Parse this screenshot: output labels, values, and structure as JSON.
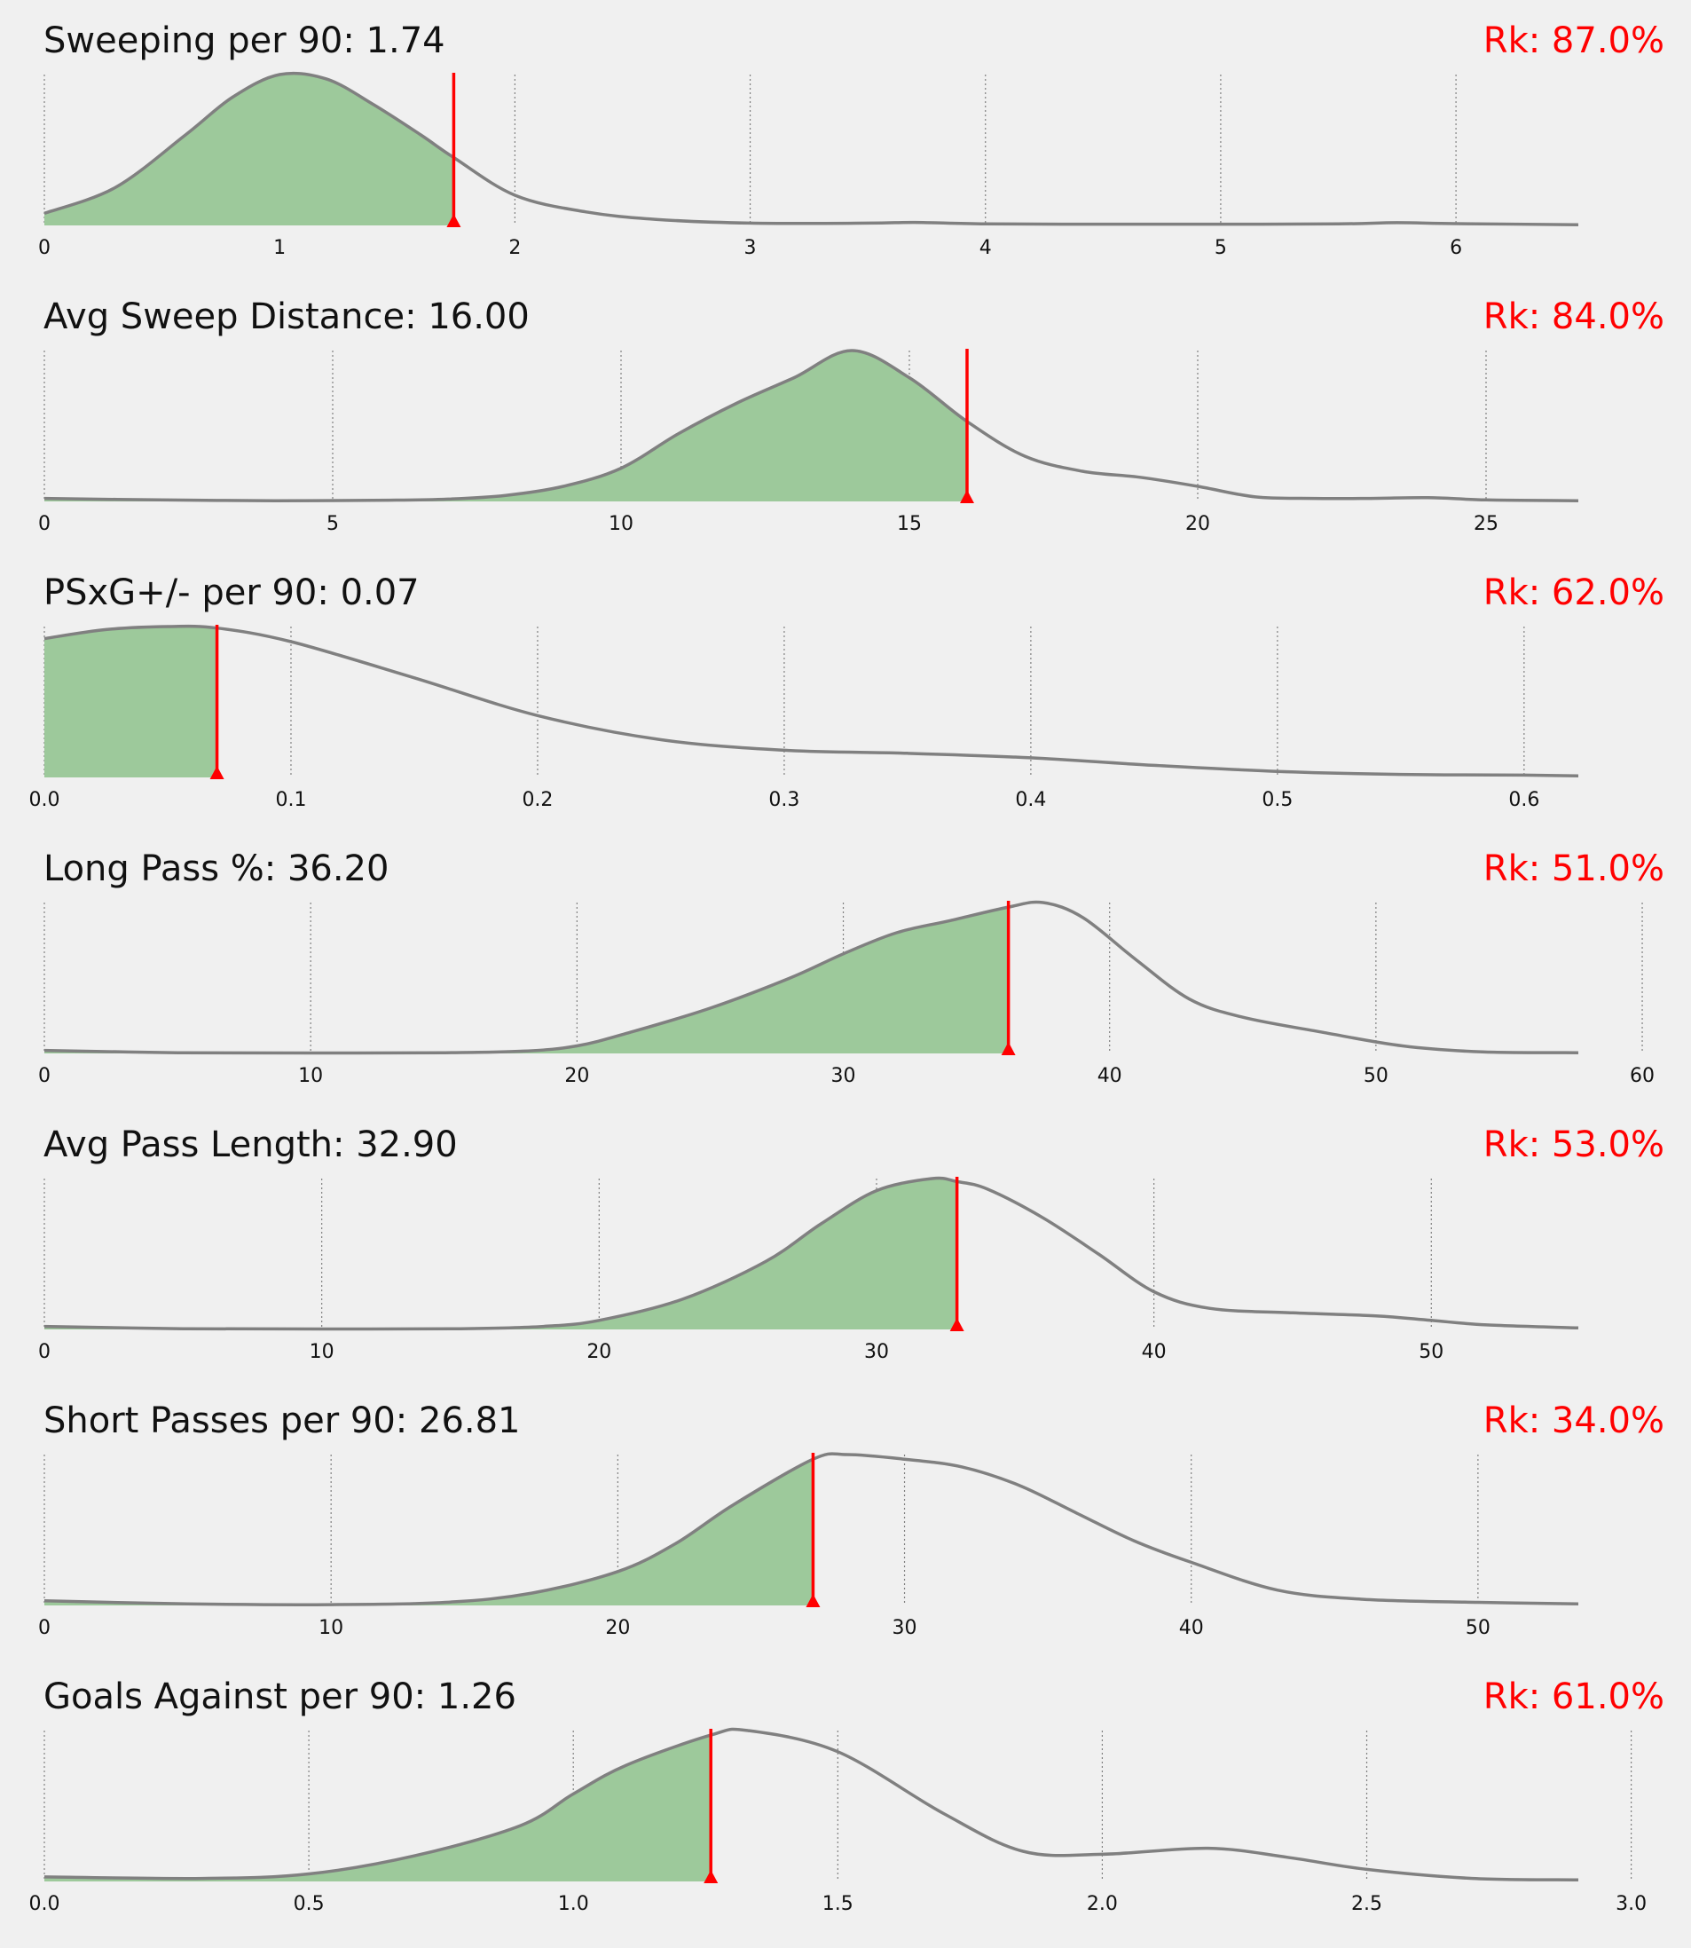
{
  "colors": {
    "background": "#f0f0f0",
    "density_line": "#808080",
    "fill": "#9dc99b",
    "marker": "#ff0000",
    "rank_text": "#ff0000",
    "grid": "#808080"
  },
  "chart_data": [
    {
      "type": "area",
      "title": "Sweeping per 90: 1.74",
      "rank_label": "Rk: 87.0%",
      "player_value": 1.74,
      "ticks": [
        0,
        1,
        2,
        3,
        4,
        5,
        6
      ],
      "tick_labels": [
        "0",
        "1",
        "2",
        "3",
        "4",
        "5",
        "6"
      ],
      "xlim": [
        0,
        6.52
      ],
      "x": [
        0,
        0.3,
        0.6,
        0.8,
        1.0,
        1.2,
        1.4,
        1.6,
        1.74,
        2.0,
        2.3,
        2.6,
        3.0,
        3.5,
        3.7,
        4.0,
        4.5,
        5.0,
        5.5,
        5.75,
        6.0,
        6.52
      ],
      "y": [
        0.08,
        0.25,
        0.6,
        0.85,
        1.0,
        0.97,
        0.8,
        0.6,
        0.45,
        0.2,
        0.09,
        0.04,
        0.015,
        0.015,
        0.02,
        0.01,
        0.008,
        0.008,
        0.01,
        0.018,
        0.012,
        0.005
      ],
      "grid": true
    },
    {
      "type": "area",
      "title": "Avg Sweep Distance: 16.00",
      "rank_label": "Rk: 84.0%",
      "player_value": 16.0,
      "ticks": [
        0,
        5,
        10,
        15,
        20,
        25
      ],
      "tick_labels": [
        "0",
        "5",
        "10",
        "15",
        "20",
        "25"
      ],
      "xlim": [
        0,
        26.6
      ],
      "x": [
        0,
        2,
        4,
        6,
        7,
        8,
        9,
        10,
        11,
        12,
        13,
        14,
        15,
        16,
        17,
        18,
        19,
        20,
        21,
        22,
        23,
        24,
        25,
        26.6
      ],
      "y": [
        0.02,
        0.01,
        0.005,
        0.008,
        0.015,
        0.04,
        0.1,
        0.22,
        0.45,
        0.65,
        0.82,
        1.0,
        0.82,
        0.53,
        0.3,
        0.2,
        0.16,
        0.1,
        0.03,
        0.02,
        0.02,
        0.025,
        0.01,
        0.005
      ],
      "grid": true
    },
    {
      "type": "area",
      "title": "PSxG+/- per 90: 0.07",
      "rank_label": "Rk: 62.0%",
      "player_value": 0.07,
      "ticks": [
        0.0,
        0.1,
        0.2,
        0.3,
        0.4,
        0.5,
        0.6
      ],
      "tick_labels": [
        "0.0",
        "0.1",
        "0.2",
        "0.3",
        "0.4",
        "0.5",
        "0.6"
      ],
      "xlim": [
        0,
        0.622
      ],
      "x": [
        0,
        0.025,
        0.05,
        0.07,
        0.1,
        0.15,
        0.2,
        0.25,
        0.3,
        0.35,
        0.4,
        0.45,
        0.5,
        0.55,
        0.6,
        0.622
      ],
      "y": [
        0.92,
        0.98,
        1.0,
        0.99,
        0.9,
        0.66,
        0.41,
        0.25,
        0.18,
        0.16,
        0.13,
        0.08,
        0.04,
        0.02,
        0.015,
        0.01
      ],
      "grid": true
    },
    {
      "type": "area",
      "title": "Long Pass %: 36.20",
      "rank_label": "Rk: 51.0%",
      "player_value": 36.2,
      "ticks": [
        0,
        10,
        20,
        30,
        40,
        50,
        60
      ],
      "tick_labels": [
        "0",
        "10",
        "20",
        "30",
        "40",
        "50",
        "60"
      ],
      "xlim": [
        0,
        57.6
      ],
      "x": [
        0,
        5,
        10,
        15,
        18,
        20,
        22,
        25,
        28,
        30,
        32,
        34,
        36.2,
        37.5,
        39,
        41,
        43,
        45,
        48,
        51,
        54,
        57.6
      ],
      "y": [
        0.02,
        0.005,
        0.003,
        0.005,
        0.015,
        0.05,
        0.14,
        0.3,
        0.5,
        0.66,
        0.8,
        0.88,
        0.97,
        1.0,
        0.9,
        0.62,
        0.36,
        0.24,
        0.14,
        0.05,
        0.01,
        0.005
      ],
      "grid": true
    },
    {
      "type": "area",
      "title": "Avg Pass Length: 32.90",
      "rank_label": "Rk: 53.0%",
      "player_value": 32.9,
      "ticks": [
        0,
        10,
        20,
        30,
        40,
        50
      ],
      "tick_labels": [
        "0",
        "10",
        "20",
        "30",
        "40",
        "50"
      ],
      "xlim": [
        0,
        55.3
      ],
      "x": [
        0,
        5,
        10,
        15,
        18,
        20,
        23,
        26,
        28,
        30,
        32,
        32.9,
        34,
        36,
        38,
        40,
        42,
        45,
        48,
        50,
        52,
        55.3
      ],
      "y": [
        0.02,
        0.005,
        0.003,
        0.005,
        0.02,
        0.06,
        0.2,
        0.45,
        0.7,
        0.92,
        1.0,
        0.98,
        0.93,
        0.74,
        0.5,
        0.25,
        0.14,
        0.11,
        0.09,
        0.06,
        0.03,
        0.01
      ],
      "grid": true
    },
    {
      "type": "area",
      "title": "Short Passes per 90: 26.81",
      "rank_label": "Rk: 34.0%",
      "player_value": 26.81,
      "ticks": [
        0,
        10,
        20,
        30,
        40,
        50
      ],
      "tick_labels": [
        "0",
        "10",
        "20",
        "30",
        "40",
        "50"
      ],
      "xlim": [
        0,
        53.5
      ],
      "x": [
        0,
        5,
        10,
        14,
        17,
        20,
        22,
        24,
        26.81,
        28,
        30,
        32,
        34,
        36,
        38,
        40,
        43,
        46,
        50,
        53.5
      ],
      "y": [
        0.03,
        0.01,
        0.005,
        0.02,
        0.08,
        0.22,
        0.4,
        0.65,
        0.95,
        0.98,
        0.95,
        0.9,
        0.78,
        0.6,
        0.42,
        0.28,
        0.1,
        0.04,
        0.02,
        0.01
      ],
      "grid": true
    },
    {
      "type": "area",
      "title": "Goals Against per 90: 1.26",
      "rank_label": "Rk: 61.0%",
      "player_value": 1.26,
      "ticks": [
        0.0,
        0.5,
        1.0,
        1.5,
        2.0,
        2.5,
        3.0
      ],
      "tick_labels": [
        "0.0",
        "0.5",
        "1.0",
        "1.5",
        "2.0",
        "2.5",
        "3.0"
      ],
      "xlim": [
        0,
        2.9
      ],
      "x": [
        0,
        0.3,
        0.5,
        0.7,
        0.9,
        1.0,
        1.1,
        1.26,
        1.33,
        1.5,
        1.7,
        1.85,
        2.0,
        2.2,
        2.35,
        2.5,
        2.7,
        2.9
      ],
      "y": [
        0.03,
        0.02,
        0.05,
        0.17,
        0.37,
        0.58,
        0.77,
        0.97,
        1.0,
        0.86,
        0.45,
        0.2,
        0.18,
        0.22,
        0.16,
        0.08,
        0.02,
        0.01
      ],
      "grid": true
    }
  ]
}
